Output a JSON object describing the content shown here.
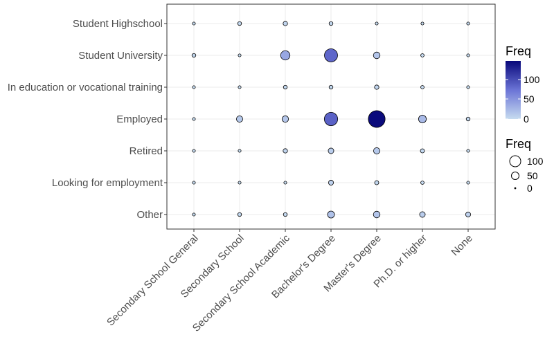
{
  "chart_data": {
    "type": "scatter",
    "title": "",
    "xlabel": "",
    "ylabel": "",
    "x_categories": [
      "Secondary School General",
      "Secondary School",
      "Secondary School Academic",
      "Bachelor's Degree",
      "Master's Degree",
      "Ph.D. or higher",
      "None"
    ],
    "y_categories": [
      "Student Highschool",
      "Student University",
      "In education or vocational training",
      "Employed",
      "Retired",
      "Looking for employment",
      "Other"
    ],
    "values": [
      [
        1,
        3,
        5,
        3,
        1,
        1,
        1
      ],
      [
        3,
        1,
        38,
        85,
        16,
        2,
        1
      ],
      [
        1,
        1,
        3,
        3,
        5,
        2,
        1
      ],
      [
        1,
        14,
        15,
        88,
        148,
        24,
        3
      ],
      [
        1,
        1,
        5,
        10,
        14,
        4,
        1
      ],
      [
        1,
        1,
        1,
        7,
        4,
        2,
        1
      ],
      [
        1,
        3,
        3,
        18,
        16,
        10,
        7
      ]
    ],
    "grid": true,
    "legends": [
      {
        "type": "color",
        "title": "Freq",
        "ticks": [
          "100",
          "50",
          "0"
        ],
        "low_color": "#c6dbef",
        "mid_color": "#6b74d6",
        "high_color": "#08087a"
      },
      {
        "type": "size",
        "title": "Freq",
        "ticks": [
          "100",
          "50",
          "0"
        ]
      }
    ],
    "legend_position": "right"
  }
}
